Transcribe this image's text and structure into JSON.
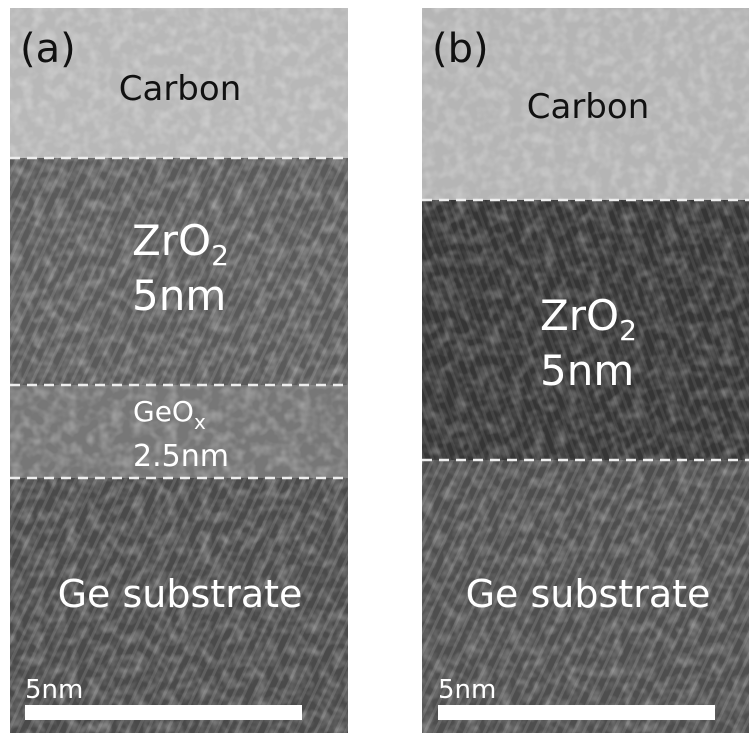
{
  "panels": [
    {
      "label": "(a)",
      "layers": [
        {
          "name": "Carbon"
        },
        {
          "name": "ZrO",
          "subscript": "2",
          "thickness": "5nm"
        },
        {
          "name": "GeO",
          "subscript": "x",
          "thickness": "2.5nm"
        },
        {
          "name": "Ge substrate"
        }
      ],
      "scale_bar": "5nm"
    },
    {
      "label": "(b)",
      "layers": [
        {
          "name": "Carbon"
        },
        {
          "name": "ZrO",
          "subscript": "2",
          "thickness": "5nm"
        },
        {
          "name": "Ge substrate"
        }
      ],
      "scale_bar": "5nm"
    }
  ]
}
